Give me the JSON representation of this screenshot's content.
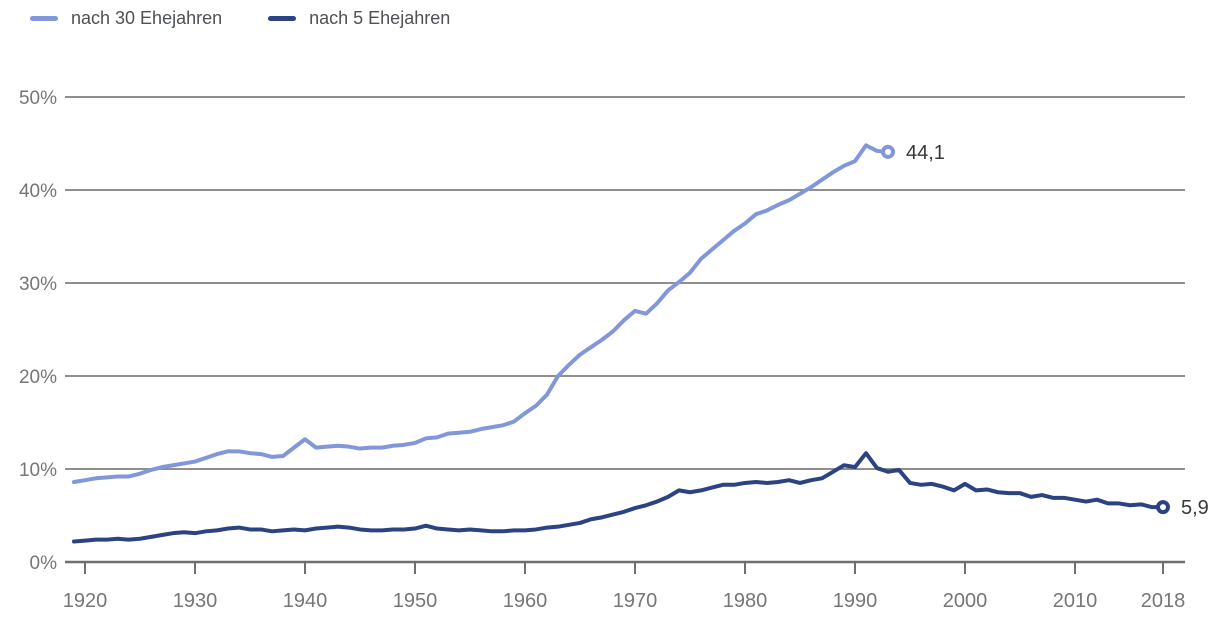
{
  "legend": {
    "items": [
      {
        "label": "nach 30 Ehejahren",
        "color": "#8197da"
      },
      {
        "label": "nach 5 Ehejahren",
        "color": "#2b4383"
      }
    ]
  },
  "chart_data": {
    "type": "line",
    "title": "",
    "xlabel": "",
    "ylabel": "",
    "grid": true,
    "legend_position": "top-left",
    "x_axis": {
      "range": [
        1919,
        2018
      ],
      "ticks": [
        1920,
        1930,
        1940,
        1950,
        1960,
        1970,
        1980,
        1990,
        2000,
        2010,
        2018
      ],
      "tick_labels": [
        "1920",
        "1930",
        "1940",
        "1950",
        "1960",
        "1970",
        "1980",
        "1990",
        "2000",
        "2010",
        "2018"
      ]
    },
    "y_axis": {
      "range": [
        0,
        50
      ],
      "ticks": [
        0,
        10,
        20,
        30,
        40,
        50
      ],
      "tick_labels": [
        "0%",
        "10%",
        "20%",
        "30%",
        "40%",
        "50%"
      ]
    },
    "series": [
      {
        "name": "nach 30 Ehejahren",
        "color": "#8197da",
        "start_year": 1919,
        "end_year": 1993,
        "end_value": 44.1,
        "end_label": "44,1",
        "values": [
          8.6,
          8.8,
          9.0,
          9.1,
          9.2,
          9.2,
          9.5,
          9.9,
          10.2,
          10.4,
          10.6,
          10.8,
          11.2,
          11.6,
          11.9,
          11.9,
          11.7,
          11.6,
          11.3,
          11.4,
          12.3,
          13.2,
          12.3,
          12.4,
          12.5,
          12.4,
          12.2,
          12.3,
          12.3,
          12.5,
          12.6,
          12.8,
          13.3,
          13.4,
          13.8,
          13.9,
          14.0,
          14.3,
          14.5,
          14.7,
          15.1,
          16.0,
          16.8,
          18.0,
          20.0,
          21.2,
          22.3,
          23.1,
          23.9,
          24.8,
          26.0,
          27.0,
          26.7,
          27.8,
          29.2,
          30.1,
          31.1,
          32.6,
          33.6,
          34.6,
          35.6,
          36.4,
          37.4,
          37.8,
          38.4,
          38.9,
          39.6,
          40.3,
          41.1,
          41.9,
          42.6,
          43.1,
          44.8,
          44.2,
          44.1
        ]
      },
      {
        "name": "nach 5 Ehejahren",
        "color": "#2b4383",
        "start_year": 1919,
        "end_year": 2018,
        "end_value": 5.9,
        "end_label": "5,9",
        "values": [
          2.2,
          2.3,
          2.4,
          2.4,
          2.5,
          2.4,
          2.5,
          2.7,
          2.9,
          3.1,
          3.2,
          3.1,
          3.3,
          3.4,
          3.6,
          3.7,
          3.5,
          3.5,
          3.3,
          3.4,
          3.5,
          3.4,
          3.6,
          3.7,
          3.8,
          3.7,
          3.5,
          3.4,
          3.4,
          3.5,
          3.5,
          3.6,
          3.9,
          3.6,
          3.5,
          3.4,
          3.5,
          3.4,
          3.3,
          3.3,
          3.4,
          3.4,
          3.5,
          3.7,
          3.8,
          4.0,
          4.2,
          4.6,
          4.8,
          5.1,
          5.4,
          5.8,
          6.1,
          6.5,
          7.0,
          7.7,
          7.5,
          7.7,
          8.0,
          8.3,
          8.3,
          8.5,
          8.6,
          8.5,
          8.6,
          8.8,
          8.5,
          8.8,
          9.0,
          9.7,
          10.4,
          10.2,
          11.7,
          10.1,
          9.7,
          9.9,
          8.5,
          8.3,
          8.4,
          8.1,
          7.7,
          8.4,
          7.7,
          7.8,
          7.5,
          7.4,
          7.4,
          7.0,
          7.2,
          6.9,
          6.9,
          6.7,
          6.5,
          6.7,
          6.3,
          6.3,
          6.1,
          6.2,
          5.9,
          5.9
        ]
      }
    ]
  }
}
